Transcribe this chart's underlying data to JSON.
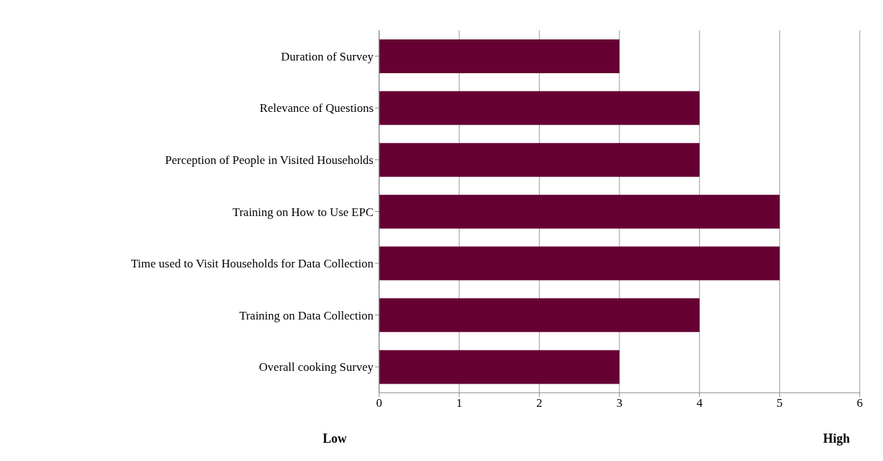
{
  "chart_data": {
    "type": "bar",
    "orientation": "horizontal",
    "categories": [
      "Duration of Survey",
      "Relevance of Questions",
      "Perception of People in Visited Households",
      "Training on How to Use EPC",
      "Time used to Visit Households for Data Collection",
      "Training on Data Collection",
      "Overall cooking Survey"
    ],
    "values": [
      3,
      4,
      4,
      5,
      5,
      4,
      3
    ],
    "color": "#660033",
    "xlim": [
      0,
      6
    ],
    "xticks": [
      0,
      1,
      2,
      3,
      4,
      5,
      6
    ],
    "grid": "x",
    "annotations": [
      "Low",
      "High"
    ]
  }
}
